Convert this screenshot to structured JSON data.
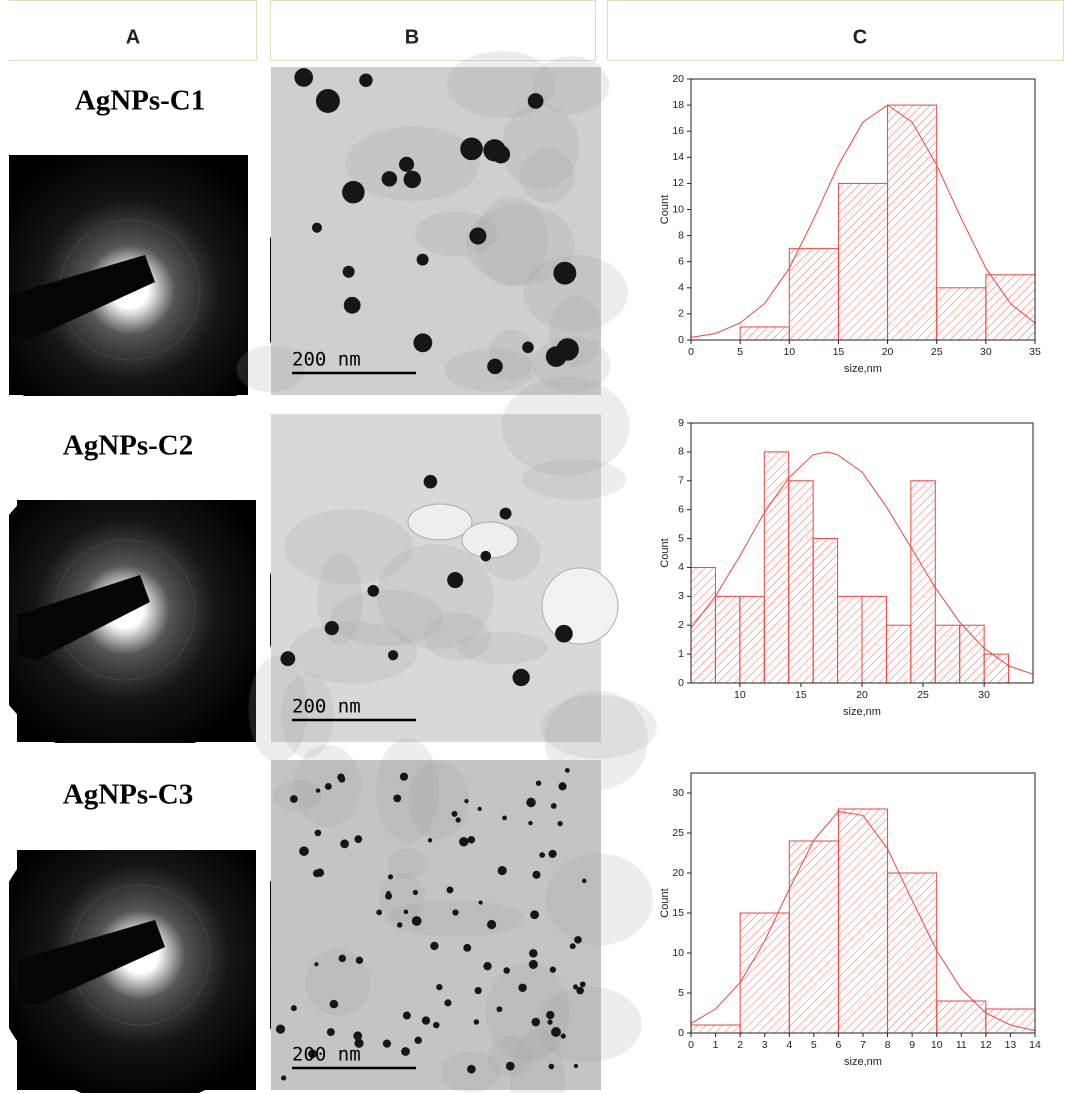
{
  "headers": [
    "A",
    "B",
    "C"
  ],
  "samples": [
    {
      "label": "AgNPs-C1",
      "scale_bar": "200 nm"
    },
    {
      "label": "AgNPs-C2",
      "scale_bar": "200 nm"
    },
    {
      "label": "AgNPs-C3",
      "scale_bar": "200 nm"
    }
  ],
  "chart_data": [
    {
      "type": "histogram",
      "xlabel": "size,nm",
      "ylabel": "Count",
      "color": "#e8473f",
      "bins": [
        0,
        5,
        10,
        15,
        20,
        25,
        30,
        35
      ],
      "values": [
        0,
        1,
        7,
        12,
        18,
        4,
        5
      ],
      "xlim": [
        0,
        35
      ],
      "ylim": [
        0,
        20
      ],
      "xticks": [
        0,
        5,
        10,
        15,
        20,
        25,
        30,
        35
      ],
      "yticks": [
        0,
        2,
        4,
        6,
        8,
        10,
        12,
        14,
        16,
        18,
        20
      ],
      "fit": {
        "x": [
          0,
          2.5,
          5,
          7.5,
          10,
          12.5,
          15,
          17.5,
          20,
          22.5,
          25,
          27.5,
          30,
          32.5,
          35
        ],
        "values": [
          0.2,
          0.5,
          1.3,
          2.8,
          5.5,
          9.3,
          13.4,
          16.7,
          18,
          16.7,
          13.4,
          9.3,
          5.5,
          2.8,
          1.3
        ]
      }
    },
    {
      "type": "histogram",
      "xlabel": "size,nm",
      "ylabel": "Count",
      "color": "#e8473f",
      "bins": [
        6,
        8,
        10,
        12,
        14,
        16,
        18,
        20,
        22,
        24,
        26,
        28,
        30,
        32
      ],
      "values": [
        4,
        3,
        3,
        8,
        7,
        5,
        3,
        3,
        2,
        7,
        2,
        2,
        1
      ],
      "xlim": [
        6,
        34
      ],
      "ylim": [
        0,
        9
      ],
      "xticks": [
        10,
        15,
        20,
        25,
        30
      ],
      "yticks": [
        0,
        1,
        2,
        3,
        4,
        5,
        6,
        7,
        8,
        9
      ],
      "fit": {
        "x": [
          6,
          8,
          10,
          12,
          14,
          16,
          17.2,
          18,
          20,
          22,
          24,
          26,
          28,
          30,
          32,
          34
        ],
        "values": [
          1.9,
          3.0,
          4.4,
          5.9,
          7.1,
          7.9,
          8,
          7.9,
          7.3,
          6.1,
          4.7,
          3.3,
          2.1,
          1.2,
          0.6,
          0.3
        ]
      }
    },
    {
      "type": "histogram",
      "xlabel": "size,nm",
      "ylabel": "Count",
      "color": "#e8473f",
      "bins": [
        0,
        2,
        4,
        6,
        8,
        10,
        12,
        14
      ],
      "values": [
        1,
        15,
        24,
        28,
        20,
        4,
        3
      ],
      "xlim": [
        0,
        14
      ],
      "ylim": [
        0,
        32.5
      ],
      "xticks": [
        0,
        1,
        2,
        3,
        4,
        5,
        6,
        7,
        8,
        9,
        10,
        11,
        12,
        13,
        14
      ],
      "yticks": [
        0,
        5,
        10,
        15,
        20,
        25,
        30
      ],
      "fit": {
        "x": [
          0,
          1,
          2,
          3,
          4,
          5,
          6,
          7,
          8,
          9,
          10,
          11,
          12,
          13,
          14
        ],
        "values": [
          1.2,
          3.0,
          6.3,
          11.5,
          18.0,
          24.1,
          27.7,
          27.2,
          23.0,
          16.6,
          10.3,
          5.5,
          2.5,
          1.0,
          0.3
        ]
      }
    }
  ]
}
